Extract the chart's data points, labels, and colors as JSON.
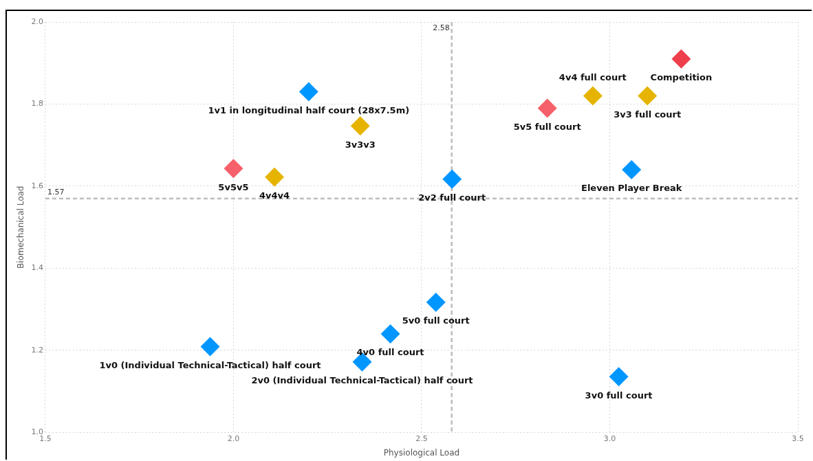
{
  "chart_data": {
    "type": "scatter",
    "xlabel": "Physiological Load",
    "ylabel": "Biomechanical Load",
    "marker": "diamond",
    "grid": true,
    "legend": false,
    "xlim": [
      1.5,
      3.5
    ],
    "xticks": [
      1.5,
      {
        "value": 2,
        "label": "2.0"
      },
      2.5,
      {
        "value": 3,
        "label": "3.0"
      },
      3.5
    ],
    "ylim": [
      1,
      2
    ],
    "yticks": [
      {
        "value": 1,
        "label": "1.0"
      },
      1.2,
      1.4,
      1.6,
      1.8,
      {
        "value": 2,
        "label": "2.0"
      }
    ],
    "series": [
      {
        "color": "#0096ff",
        "x": [
          2.2,
          3.058,
          2.581,
          2.538,
          2.417,
          1.938,
          2.342,
          3.024
        ],
        "values": [
          1.83,
          1.64,
          1.617,
          1.317,
          1.24,
          1.209,
          1.172,
          1.136
        ]
      },
      {
        "color": "#e6b400",
        "x": [
          2.955,
          3.1,
          2.337,
          2.109
        ],
        "values": [
          1.82,
          1.82,
          1.747,
          1.622
        ]
      },
      {
        "color": "#f5606a",
        "x": [
          2.834,
          2.0
        ],
        "values": [
          1.79,
          1.643
        ]
      },
      {
        "color": "#ee3f4c",
        "x": [
          3.19
        ],
        "values": [
          1.91
        ]
      }
    ],
    "ref_lines": [
      {
        "axis": "x",
        "value": 2.58,
        "label": "2.58",
        "color": "#bdbdbd",
        "line_style": "dashed"
      },
      {
        "axis": "y",
        "value": 1.57,
        "label": "1.57",
        "color": "#bdbdbd",
        "line_style": "dashed"
      }
    ],
    "annotations": [
      {
        "text": "Competition",
        "x": 3.19,
        "y": 1.91
      },
      {
        "text": "3v3 full court",
        "x": 3.1,
        "y": 1.82
      },
      {
        "text": "4v4 full court",
        "x": 2.955,
        "y": 1.82
      },
      {
        "text": "5v5 full court",
        "x": 2.834,
        "y": 1.79
      },
      {
        "text": "1v1 in longitudinal half court (28x7.5m)",
        "x": 2.2,
        "y": 1.83
      },
      {
        "text": "3v3v3",
        "x": 2.337,
        "y": 1.747
      },
      {
        "text": "Eleven Player Break",
        "x": 3.058,
        "y": 1.64
      },
      {
        "text": "5v5v5",
        "x": 2.0,
        "y": 1.643
      },
      {
        "text": "4v4v4",
        "x": 2.109,
        "y": 1.622
      },
      {
        "text": "2v2 full court",
        "x": 2.581,
        "y": 1.617
      },
      {
        "text": "5v0 full court",
        "x": 2.538,
        "y": 1.317
      },
      {
        "text": "4v0 full court",
        "x": 2.417,
        "y": 1.24
      },
      {
        "text": "1v0 (Individual Technical-Tactical) half court",
        "x": 1.938,
        "y": 1.209
      },
      {
        "text": "2v0 (Individual Technical-Tactical) half court",
        "x": 2.342,
        "y": 1.172
      },
      {
        "text": "3v0 full court",
        "x": 3.024,
        "y": 1.136
      }
    ]
  }
}
